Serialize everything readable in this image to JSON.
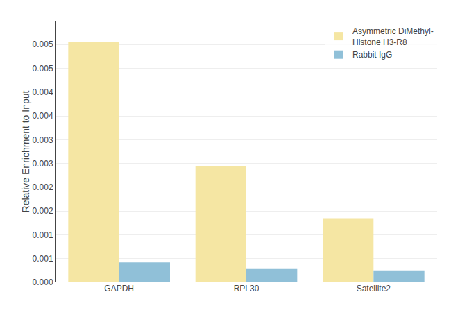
{
  "chart_data": {
    "type": "bar",
    "categories": [
      "GAPDH",
      "RPL30",
      "Satellite2"
    ],
    "series": [
      {
        "name": "Asymmetric DiMethyl-\nHistone H3-R8",
        "color": "#F5E6A3",
        "values": [
          0.00505,
          0.00245,
          0.00135
        ]
      },
      {
        "name": "Rabbit IgG",
        "color": "#90C0D8",
        "values": [
          0.00042,
          0.00028,
          0.00025
        ]
      }
    ],
    "ylabel": "Relative Enrichment to Input",
    "ylim": [
      0,
      0.0055
    ],
    "yticks": [
      {
        "value": 0.0,
        "label": "0.000"
      },
      {
        "value": 0.0005,
        "label": "0.001"
      },
      {
        "value": 0.001,
        "label": "0.001"
      },
      {
        "value": 0.0015,
        "label": "0.002"
      },
      {
        "value": 0.002,
        "label": "0.002"
      },
      {
        "value": 0.0025,
        "label": "0.003"
      },
      {
        "value": 0.003,
        "label": "0.003"
      },
      {
        "value": 0.0035,
        "label": "0.004"
      },
      {
        "value": 0.004,
        "label": "0.004"
      },
      {
        "value": 0.0045,
        "label": "0.005"
      },
      {
        "value": 0.005,
        "label": "0.005"
      }
    ],
    "grid": true,
    "legend": "upper right"
  }
}
